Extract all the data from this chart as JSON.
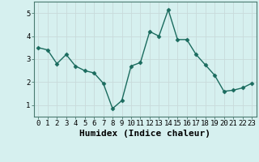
{
  "x": [
    0,
    1,
    2,
    3,
    4,
    5,
    6,
    7,
    8,
    9,
    10,
    11,
    12,
    13,
    14,
    15,
    16,
    17,
    18,
    19,
    20,
    21,
    22,
    23
  ],
  "y": [
    3.5,
    3.4,
    2.8,
    3.2,
    2.7,
    2.5,
    2.4,
    1.95,
    0.85,
    1.2,
    2.7,
    2.85,
    4.2,
    4.0,
    5.15,
    3.85,
    3.85,
    3.2,
    2.75,
    2.3,
    1.6,
    1.65,
    1.75,
    1.95
  ],
  "line_color": "#1a6b5e",
  "marker": "D",
  "marker_size": 2.5,
  "bg_color": "#d6f0ef",
  "grid_color": "#c8dada",
  "xlabel": "Humidex (Indice chaleur)",
  "xlim": [
    -0.5,
    23.5
  ],
  "ylim": [
    0.5,
    5.5
  ],
  "yticks": [
    1,
    2,
    3,
    4,
    5
  ],
  "xticks": [
    0,
    1,
    2,
    3,
    4,
    5,
    6,
    7,
    8,
    9,
    10,
    11,
    12,
    13,
    14,
    15,
    16,
    17,
    18,
    19,
    20,
    21,
    22,
    23
  ],
  "tick_label_size": 6.5,
  "xlabel_size": 8.0,
  "line_width": 1.0
}
